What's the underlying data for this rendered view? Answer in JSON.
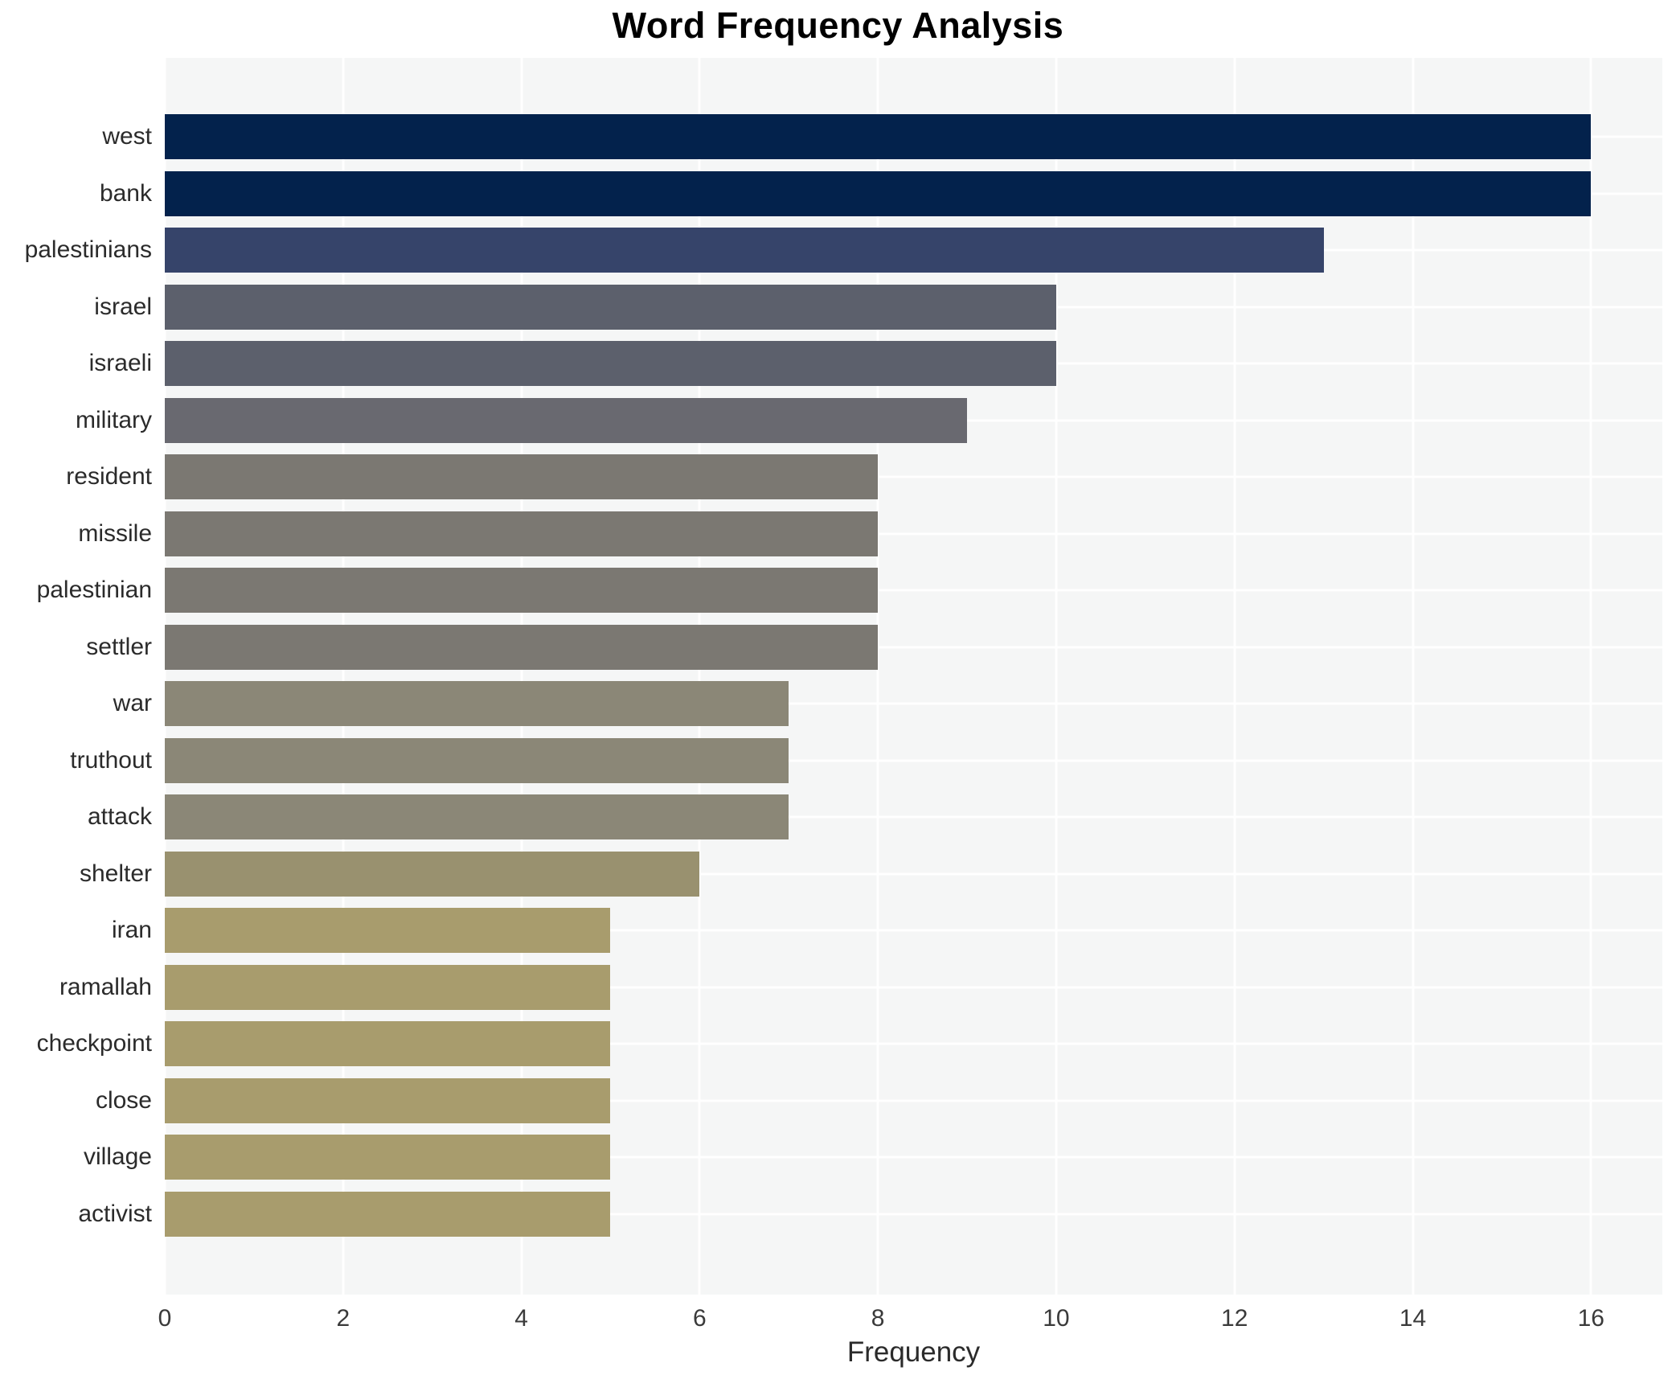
{
  "chart_data": {
    "type": "bar",
    "orientation": "horizontal",
    "title": "Word Frequency Analysis",
    "xlabel": "Frequency",
    "categories": [
      "west",
      "bank",
      "palestinians",
      "israel",
      "israeli",
      "military",
      "resident",
      "missile",
      "palestinian",
      "settler",
      "war",
      "truthout",
      "attack",
      "shelter",
      "iran",
      "ramallah",
      "checkpoint",
      "close",
      "village",
      "activist"
    ],
    "values": [
      16,
      16,
      13,
      10,
      10,
      9,
      8,
      8,
      8,
      8,
      7,
      7,
      7,
      6,
      5,
      5,
      5,
      5,
      5,
      5
    ],
    "bar_colors": [
      "#03224c",
      "#03224c",
      "#36446a",
      "#5c606c",
      "#5c606c",
      "#696970",
      "#7b7872",
      "#7b7872",
      "#7b7872",
      "#7b7872",
      "#8b8777",
      "#8b8777",
      "#8b8777",
      "#99916f",
      "#a89c6d",
      "#a89c6d",
      "#a89c6d",
      "#a89c6d",
      "#a89c6d",
      "#a89c6d"
    ],
    "xticks": [
      0,
      2,
      4,
      6,
      8,
      10,
      12,
      14,
      16
    ],
    "xlim": [
      0,
      16.8
    ],
    "grid": "white gridlines on light gray plot background; vertical lines at even ticks, horizontal lines at category centers",
    "plot_bg": "#f5f6f6",
    "page_bg": "#ffffff",
    "gridline_color": "#ffffff",
    "legend": "none"
  }
}
